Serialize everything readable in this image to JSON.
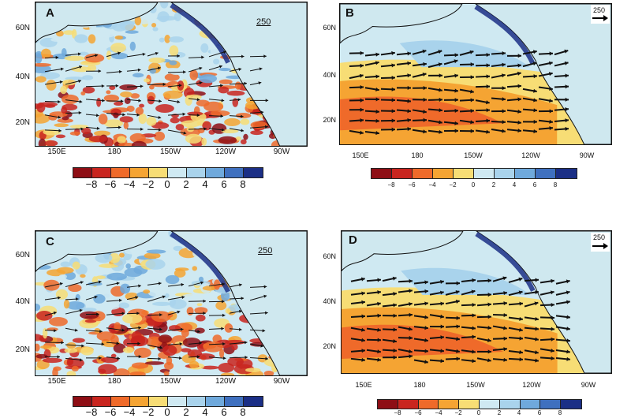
{
  "colors": {
    "palette": [
      "#8e0e15",
      "#c9251f",
      "#ef6a2a",
      "#f5a433",
      "#f7dd75",
      "#cfe9f2",
      "#a9d3ec",
      "#6fa9dc",
      "#3f70bf",
      "#1b2f86"
    ],
    "land": "#cfe8ef",
    "coast": "#111111",
    "arrow": "#111111"
  },
  "colorbar": {
    "labels": [
      "−8",
      "−6",
      "−4",
      "−2",
      "0",
      "2",
      "4",
      "6",
      "8"
    ]
  },
  "panels": [
    {
      "id": "A",
      "label": "A",
      "lat_labels": [
        "60N",
        "40N",
        "20N"
      ],
      "lon_labels": [
        "150E",
        "180",
        "150W",
        "120W",
        "90W"
      ],
      "ref_vector": "250",
      "style": "a"
    },
    {
      "id": "B",
      "label": "B",
      "lat_labels": [
        "60N",
        "40N",
        "20N"
      ],
      "lon_labels": [
        "150E",
        "180",
        "150W",
        "120W",
        "90W"
      ],
      "ref_vector": "250",
      "style": "b"
    },
    {
      "id": "C",
      "label": "C",
      "lat_labels": [
        "60N",
        "40N",
        "20N"
      ],
      "lon_labels": [
        "150E",
        "180",
        "150W",
        "120W",
        "90W"
      ],
      "ref_vector": "250",
      "style": "a"
    },
    {
      "id": "D",
      "label": "D",
      "lat_labels": [
        "60N",
        "40N",
        "20N"
      ],
      "lon_labels": [
        "150E",
        "180",
        "150W",
        "120W",
        "90W"
      ],
      "ref_vector": "250",
      "style": "b"
    }
  ]
}
